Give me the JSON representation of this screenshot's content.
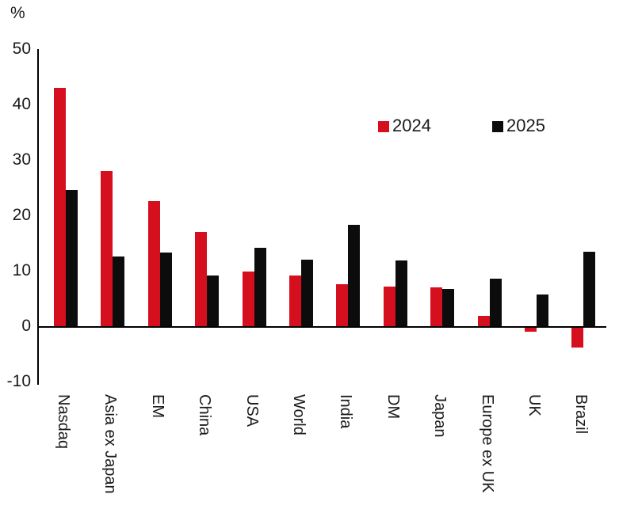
{
  "page": {
    "background": "#ffffff"
  },
  "chart_data": {
    "type": "bar",
    "title": "",
    "ylabel": "%",
    "xlabel": "",
    "categories": [
      "Nasdaq",
      "Asia ex Japan",
      "EM",
      "China",
      "USA",
      "World",
      "India",
      "DM",
      "Japan",
      "Europe ex UK",
      "UK",
      "Brazil"
    ],
    "series": [
      {
        "name": "2024",
        "color": "#d50f1e",
        "values": [
          43.0,
          28.0,
          22.6,
          17.0,
          9.9,
          9.2,
          7.6,
          7.1,
          7.0,
          1.9,
          -0.7,
          -3.5
        ]
      },
      {
        "name": "2025",
        "color": "#0c0c0c",
        "values": [
          24.5,
          12.5,
          13.3,
          9.2,
          14.2,
          12.0,
          18.3,
          11.8,
          6.7,
          8.6,
          5.7,
          13.4
        ]
      }
    ],
    "yticks": [
      50,
      40,
      30,
      20,
      10,
      0,
      -10
    ],
    "ylim": [
      -10,
      50
    ],
    "grid": false,
    "legend_position": "inside-upper-right",
    "axis_color": "#000000",
    "text_color": "#1a1a1a"
  }
}
